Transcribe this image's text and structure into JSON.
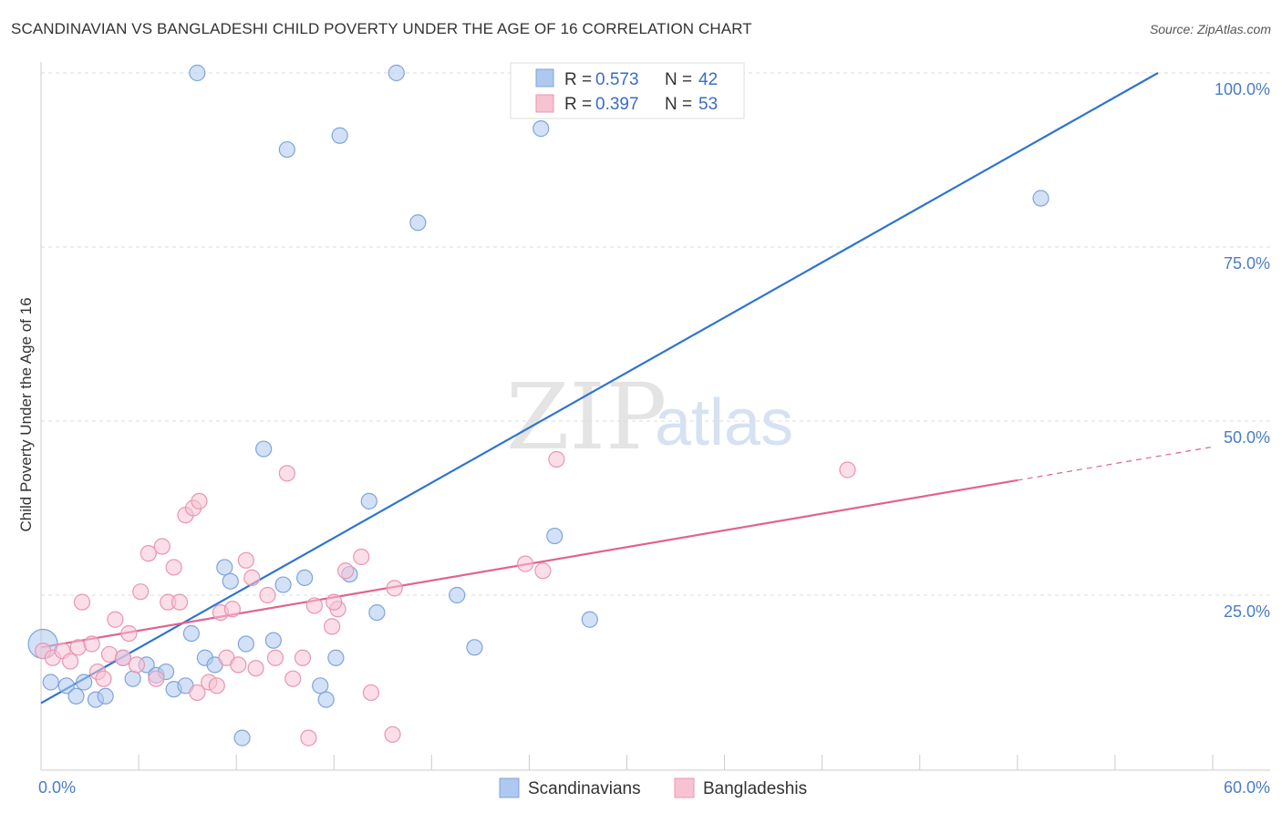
{
  "title": "SCANDINAVIAN VS BANGLADESHI CHILD POVERTY UNDER THE AGE OF 16 CORRELATION CHART",
  "source": "Source: ZipAtlas.com",
  "watermark": {
    "zip": "ZIP",
    "atlas": "atlas"
  },
  "colors": {
    "blue_fill": "#aec8ef",
    "blue_stroke": "#7fa4dc",
    "blue_line": "#2e74d0",
    "pink_fill": "#f7c3d3",
    "pink_stroke": "#e896b0",
    "pink_line": "#e0648e",
    "grid": "#dddddd",
    "axis_text": "#4a7cc8"
  },
  "legend": {
    "items": [
      {
        "r_label": "R =",
        "r_value": "0.573",
        "n_label": "N =",
        "n_value": "42"
      },
      {
        "r_label": "R =",
        "r_value": "0.397",
        "n_label": "N =",
        "n_value": "53"
      }
    ]
  },
  "bottom_legend": [
    "Scandinavians",
    "Bangladeshis"
  ],
  "chart_data": {
    "type": "scatter",
    "title": "SCANDINAVIAN VS BANGLADESHI CHILD POVERTY UNDER THE AGE OF 16 CORRELATION CHART",
    "xlabel": "",
    "ylabel": "Child Poverty Under the Age of 16",
    "xlim": [
      0,
      60
    ],
    "ylim": [
      0,
      100
    ],
    "x_tick_labels": [
      "0.0%",
      "60.0%"
    ],
    "y_tick_labels": [
      "100.0%",
      "75.0%",
      "50.0%",
      "25.0%"
    ],
    "y_tick_values": [
      100,
      75,
      50,
      25
    ],
    "grid": true,
    "series": [
      {
        "name": "Scandinavians",
        "r": 0.573,
        "n": 42,
        "trend": {
          "x": [
            0,
            57.2
          ],
          "y": [
            9.5,
            100
          ]
        },
        "points": [
          [
            0.1,
            18.0
          ],
          [
            0.5,
            12.5
          ],
          [
            1.3,
            12.0
          ],
          [
            1.8,
            10.5
          ],
          [
            2.8,
            10.0
          ],
          [
            2.2,
            12.5
          ],
          [
            3.3,
            10.5
          ],
          [
            4.2,
            16.0
          ],
          [
            4.7,
            13.0
          ],
          [
            5.4,
            15.0
          ],
          [
            5.9,
            13.5
          ],
          [
            6.4,
            14.0
          ],
          [
            6.8,
            11.5
          ],
          [
            7.4,
            12.0
          ],
          [
            7.7,
            19.5
          ],
          [
            8.4,
            16.0
          ],
          [
            8.9,
            15.0
          ],
          [
            9.4,
            29.0
          ],
          [
            9.7,
            27.0
          ],
          [
            10.5,
            18.0
          ],
          [
            10.3,
            4.5
          ],
          [
            11.4,
            46.0
          ],
          [
            11.9,
            18.5
          ],
          [
            12.4,
            26.5
          ],
          [
            13.5,
            27.5
          ],
          [
            14.3,
            12.0
          ],
          [
            14.6,
            10.0
          ],
          [
            15.1,
            16.0
          ],
          [
            15.8,
            28.0
          ],
          [
            16.8,
            38.5
          ],
          [
            17.2,
            22.5
          ],
          [
            12.6,
            89.0
          ],
          [
            15.3,
            91.0
          ],
          [
            18.2,
            100.0
          ],
          [
            19.3,
            78.5
          ],
          [
            21.3,
            25.0
          ],
          [
            22.2,
            17.5
          ],
          [
            26.3,
            33.5
          ],
          [
            25.6,
            92.0
          ],
          [
            28.1,
            21.5
          ],
          [
            51.2,
            82.0
          ],
          [
            8.0,
            100.0
          ]
        ]
      },
      {
        "name": "Bangladeshis",
        "r": 0.397,
        "n": 53,
        "trend": {
          "x": [
            0,
            50
          ],
          "y": [
            17.5,
            41.5
          ]
        },
        "trend_dashed": {
          "x": [
            50,
            60
          ],
          "y": [
            41.5,
            46.3
          ]
        },
        "points": [
          [
            0.1,
            17.0
          ],
          [
            0.6,
            16.0
          ],
          [
            1.1,
            17.0
          ],
          [
            1.5,
            15.5
          ],
          [
            1.9,
            17.5
          ],
          [
            2.1,
            24.0
          ],
          [
            2.6,
            18.0
          ],
          [
            2.9,
            14.0
          ],
          [
            3.2,
            13.0
          ],
          [
            3.5,
            16.5
          ],
          [
            3.8,
            21.5
          ],
          [
            4.2,
            16.0
          ],
          [
            4.5,
            19.5
          ],
          [
            4.9,
            15.0
          ],
          [
            5.1,
            25.5
          ],
          [
            5.5,
            31.0
          ],
          [
            5.9,
            13.0
          ],
          [
            6.2,
            32.0
          ],
          [
            6.5,
            24.0
          ],
          [
            6.8,
            29.0
          ],
          [
            7.1,
            24.0
          ],
          [
            7.4,
            36.5
          ],
          [
            7.8,
            37.5
          ],
          [
            8.1,
            38.5
          ],
          [
            8.0,
            11.0
          ],
          [
            8.6,
            12.5
          ],
          [
            9.2,
            22.5
          ],
          [
            9.5,
            16.0
          ],
          [
            9.8,
            23.0
          ],
          [
            10.1,
            15.0
          ],
          [
            10.5,
            30.0
          ],
          [
            10.8,
            27.5
          ],
          [
            11.0,
            14.5
          ],
          [
            11.6,
            25.0
          ],
          [
            12.0,
            16.0
          ],
          [
            12.6,
            42.5
          ],
          [
            12.9,
            13.0
          ],
          [
            13.4,
            16.0
          ],
          [
            14.0,
            23.5
          ],
          [
            13.7,
            4.5
          ],
          [
            14.9,
            20.5
          ],
          [
            15.2,
            23.0
          ],
          [
            15.6,
            28.5
          ],
          [
            16.4,
            30.5
          ],
          [
            16.9,
            11.0
          ],
          [
            18.0,
            5.0
          ],
          [
            18.1,
            26.0
          ],
          [
            24.8,
            29.5
          ],
          [
            25.7,
            28.5
          ],
          [
            26.4,
            44.5
          ],
          [
            41.3,
            43.0
          ],
          [
            15.0,
            24.0
          ],
          [
            9.0,
            12.0
          ]
        ]
      }
    ]
  }
}
